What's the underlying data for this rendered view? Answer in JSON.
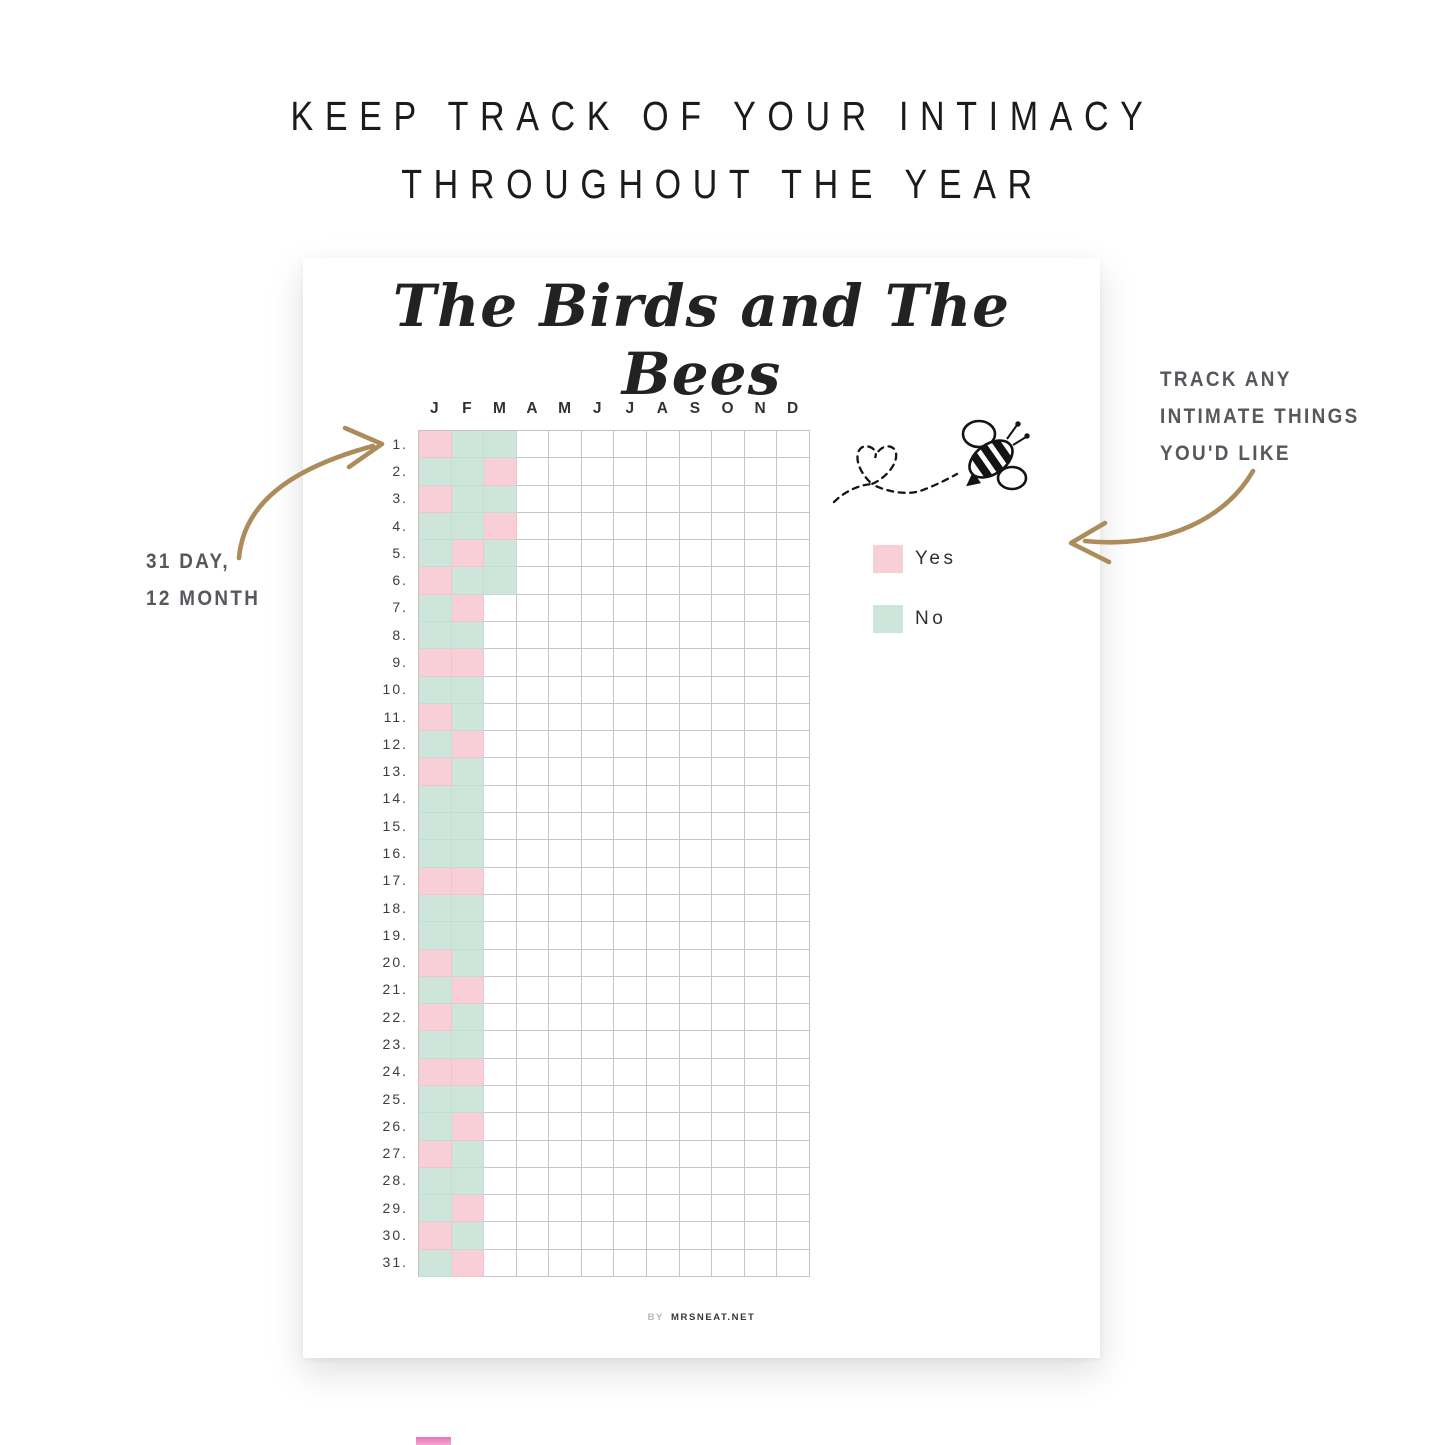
{
  "header": {
    "lines": [
      "KEEP TRACK OF YOUR INTIMACY",
      "THROUGHOUT THE YEAR"
    ]
  },
  "card": {
    "title": "The Birds and The Bees",
    "day_count": 31,
    "day_label_suffix": ".",
    "footer": {
      "prefix": "BY",
      "site": "MRSNEAT.NET"
    }
  },
  "legend": {
    "items": [
      {
        "label": "Yes",
        "code": "P",
        "color": "#f9cfd7"
      },
      {
        "label": "No",
        "code": "N",
        "color": "#cee5dc"
      }
    ]
  },
  "annotations": {
    "left_lines": [
      "31 DAY,",
      "12 MONTH"
    ],
    "right_lines": [
      "TRACK ANY",
      "INTIMATE THINGS",
      "YOU'D LIKE"
    ]
  },
  "colors": {
    "yes_pink": "#f9cfd7",
    "no_mint": "#cee5dc",
    "gold_arrow": "#ab8c5a",
    "grid_line": "#c3c3c3",
    "bottom_accent_pink": "#e873b8"
  },
  "chart_data": {
    "type": "heatmap",
    "title": "The Birds and The Bees",
    "x": [
      "J",
      "F",
      "M",
      "A",
      "M",
      "J",
      "J",
      "A",
      "S",
      "O",
      "N",
      "D"
    ],
    "y_range": [
      1,
      31
    ],
    "legend": {
      "P": "Yes",
      "N": "No"
    },
    "cells": [
      "PNN.........",
      "NNP.........",
      "PNN.........",
      "NNP.........",
      "NPN.........",
      "PNN.........",
      "NP..........",
      "NN..........",
      "PP..........",
      "NN..........",
      "PN..........",
      "NP..........",
      "PN..........",
      "NN..........",
      "NN..........",
      "NN..........",
      "PP..........",
      "NN..........",
      "NN..........",
      "PN..........",
      "NP..........",
      "PN..........",
      "NN..........",
      "PP..........",
      "NN..........",
      "NP..........",
      "PN..........",
      "NN..........",
      "NP..........",
      "PN..........",
      "NP.........."
    ]
  }
}
